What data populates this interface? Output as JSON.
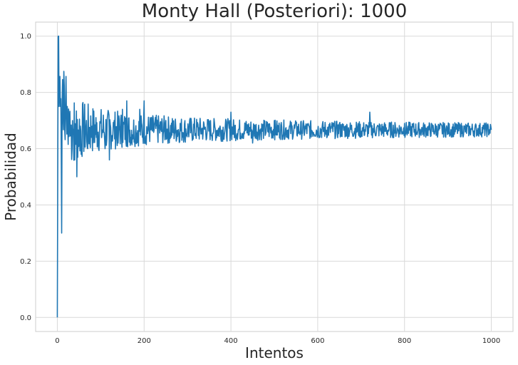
{
  "chart_data": {
    "type": "line",
    "title": "Monty Hall (Posteriori): 1000",
    "xlabel": "Intentos",
    "ylabel": "Probabilidad",
    "xlim": [
      -50,
      1050
    ],
    "ylim": [
      -0.05,
      1.05
    ],
    "xticks": [
      0,
      200,
      400,
      600,
      800,
      1000
    ],
    "yticks": [
      0.0,
      0.2,
      0.4,
      0.6,
      0.8,
      1.0
    ],
    "xtick_labels": [
      "0",
      "200",
      "400",
      "600",
      "800",
      "1000"
    ],
    "ytick_labels": [
      "0.0",
      "0.2",
      "0.4",
      "0.6",
      "0.8",
      "1.0"
    ],
    "grid": true,
    "series": [
      {
        "name": "Probabilidad",
        "color": "#1f77b4",
        "x_range": [
          0,
          1000
        ],
        "converges_to": 0.667,
        "early_points": [
          [
            0,
            0.0
          ],
          [
            1,
            0.5
          ],
          [
            2,
            1.0
          ],
          [
            3,
            1.0
          ],
          [
            4,
            0.75
          ],
          [
            5,
            0.8
          ],
          [
            6,
            0.857
          ],
          [
            7,
            0.75
          ],
          [
            8,
            0.778
          ],
          [
            9,
            0.6
          ],
          [
            10,
            0.3
          ],
          [
            11,
            0.75
          ],
          [
            12,
            0.846
          ],
          [
            13,
            0.714
          ],
          [
            14,
            0.667
          ],
          [
            15,
            0.875
          ],
          [
            16,
            0.824
          ],
          [
            17,
            0.667
          ],
          [
            18,
            0.632
          ],
          [
            19,
            0.75
          ],
          [
            20,
            0.857
          ],
          [
            21,
            0.727
          ],
          [
            22,
            0.652
          ],
          [
            23,
            0.75
          ],
          [
            24,
            0.68
          ],
          [
            25,
            0.615
          ],
          [
            26,
            0.741
          ],
          [
            27,
            0.643
          ],
          [
            28,
            0.69
          ],
          [
            29,
            0.733
          ],
          [
            30,
            0.645
          ],
          [
            35,
            0.7
          ],
          [
            40,
            0.56
          ],
          [
            45,
            0.5
          ],
          [
            50,
            0.62
          ],
          [
            55,
            0.58
          ],
          [
            60,
            0.7
          ],
          [
            70,
            0.6
          ],
          [
            80,
            0.68
          ],
          [
            90,
            0.64
          ],
          [
            100,
            0.7
          ],
          [
            110,
            0.6
          ],
          [
            120,
            0.56
          ],
          [
            130,
            0.68
          ],
          [
            140,
            0.62
          ],
          [
            150,
            0.74
          ],
          [
            160,
            0.77
          ],
          [
            170,
            0.62
          ],
          [
            180,
            0.66
          ],
          [
            190,
            0.74
          ],
          [
            200,
            0.77
          ],
          [
            250,
            0.7
          ],
          [
            300,
            0.66
          ],
          [
            360,
            0.66
          ],
          [
            400,
            0.73
          ],
          [
            450,
            0.62
          ],
          [
            500,
            0.7
          ],
          [
            550,
            0.69
          ],
          [
            600,
            0.66
          ],
          [
            650,
            0.69
          ],
          [
            700,
            0.65
          ],
          [
            720,
            0.73
          ],
          [
            800,
            0.69
          ],
          [
            900,
            0.66
          ],
          [
            1000,
            0.667
          ]
        ]
      }
    ]
  }
}
